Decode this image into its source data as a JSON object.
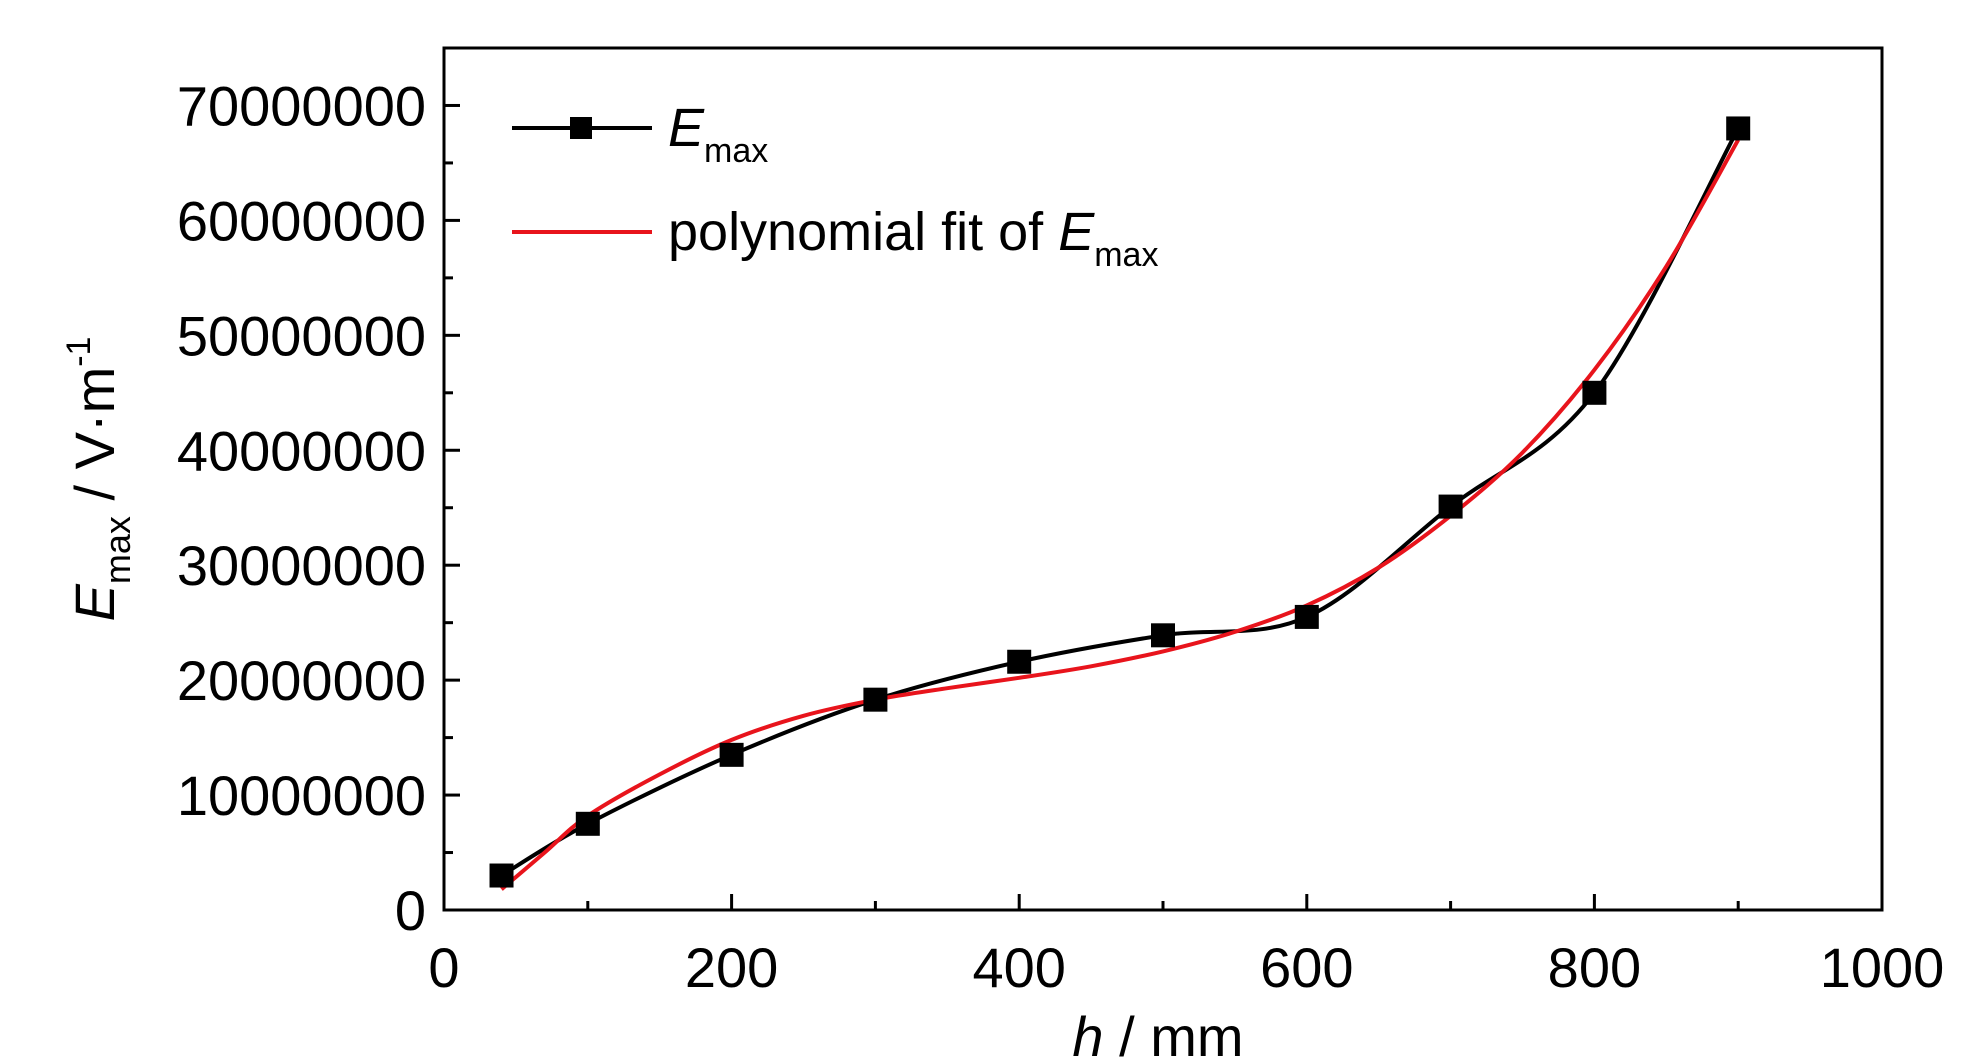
{
  "chart_data": {
    "type": "line",
    "xlabel": {
      "var": "h",
      "rest": " / mm"
    },
    "ylabel": {
      "var": "E",
      "sub": "max",
      "rest": " / V·m",
      "sup": "-1"
    },
    "xlim": [
      0,
      1000
    ],
    "ylim": [
      0,
      75000000
    ],
    "x_ticks": [
      0,
      200,
      400,
      600,
      800,
      1000
    ],
    "x_tick_labels": [
      "0",
      "200",
      "400",
      "600",
      "800",
      "1000"
    ],
    "y_ticks": [
      0,
      10000000,
      20000000,
      30000000,
      40000000,
      50000000,
      60000000,
      70000000
    ],
    "y_tick_labels": [
      "0",
      "10000000",
      "20000000",
      "30000000",
      "40000000",
      "50000000",
      "60000000",
      "70000000"
    ],
    "grid": false,
    "legend_position": "top-left",
    "series": [
      {
        "name": "E_max",
        "legend": {
          "var": "E",
          "sub": "max"
        },
        "color": "#000000",
        "marker": "square",
        "style": "smoothed line with markers",
        "x": [
          40,
          100,
          200,
          300,
          400,
          500,
          600,
          700,
          800,
          900
        ],
        "y": [
          3000000,
          7500000,
          13500000,
          18300000,
          21600000,
          23900000,
          25500000,
          35100000,
          45000000,
          68000000
        ]
      },
      {
        "name": "polynomial fit of E_max",
        "legend": {
          "prefix": "polynomial fit of ",
          "var": "E",
          "sub": "max"
        },
        "color": "#e8141c",
        "marker": "none",
        "style": "line",
        "x": [
          40,
          70,
          100,
          150,
          200,
          250,
          300,
          350,
          400,
          450,
          500,
          550,
          600,
          650,
          700,
          750,
          800,
          850,
          900
        ],
        "y": [
          1800000,
          5000000,
          8200000,
          11800000,
          14800000,
          16900000,
          18300000,
          19300000,
          20200000,
          21200000,
          22500000,
          24200000,
          26500000,
          29800000,
          34300000,
          39800000,
          47000000,
          56000000,
          67000000
        ]
      }
    ]
  }
}
